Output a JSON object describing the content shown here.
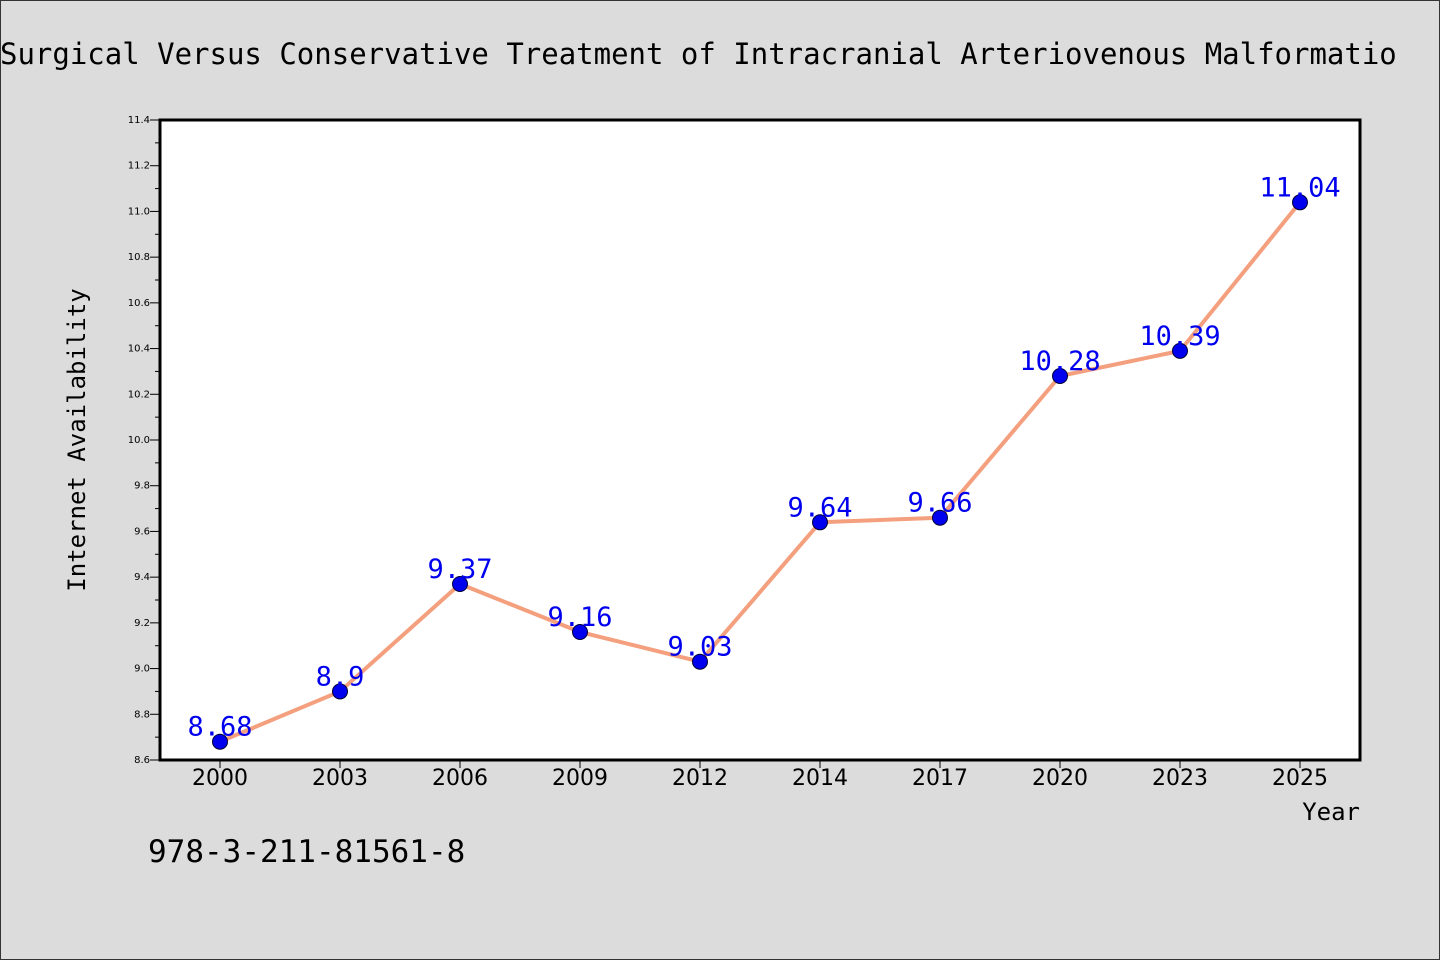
{
  "footer_code": "978-3-211-81561-8",
  "chart_data": {
    "type": "line",
    "title": "Surgical Versus Conservative Treatment of Intracranial Arteriovenous Malformatio",
    "xlabel": "Year",
    "ylabel": "Internet Availability",
    "categories": [
      "2000",
      "2003",
      "2006",
      "2009",
      "2012",
      "2014",
      "2017",
      "2020",
      "2023",
      "2025"
    ],
    "values": [
      8.68,
      8.9,
      9.37,
      9.16,
      9.03,
      9.64,
      9.66,
      10.28,
      10.39,
      11.04
    ],
    "data_labels": [
      "8.68",
      "8.9",
      "9.37",
      "9.16",
      "9.03",
      "9.64",
      "9.66",
      "10.28",
      "10.39",
      "11.04"
    ],
    "ylim": [
      8.6,
      11.4
    ],
    "yticks": [
      "8.6",
      "8.8",
      "9.0",
      "9.2",
      "9.4",
      "9.6",
      "9.8",
      "10.0",
      "10.2",
      "10.4",
      "10.6",
      "10.8",
      "11.0",
      "11.2",
      "11.4"
    ],
    "grid": false,
    "colors": {
      "line": "#f4a07e",
      "marker_fill": "#0000ee",
      "marker_edge": "#000033",
      "data_label": "#0000ee",
      "plot_background": "#ffffff",
      "page_background": "#dcdcdc"
    }
  }
}
